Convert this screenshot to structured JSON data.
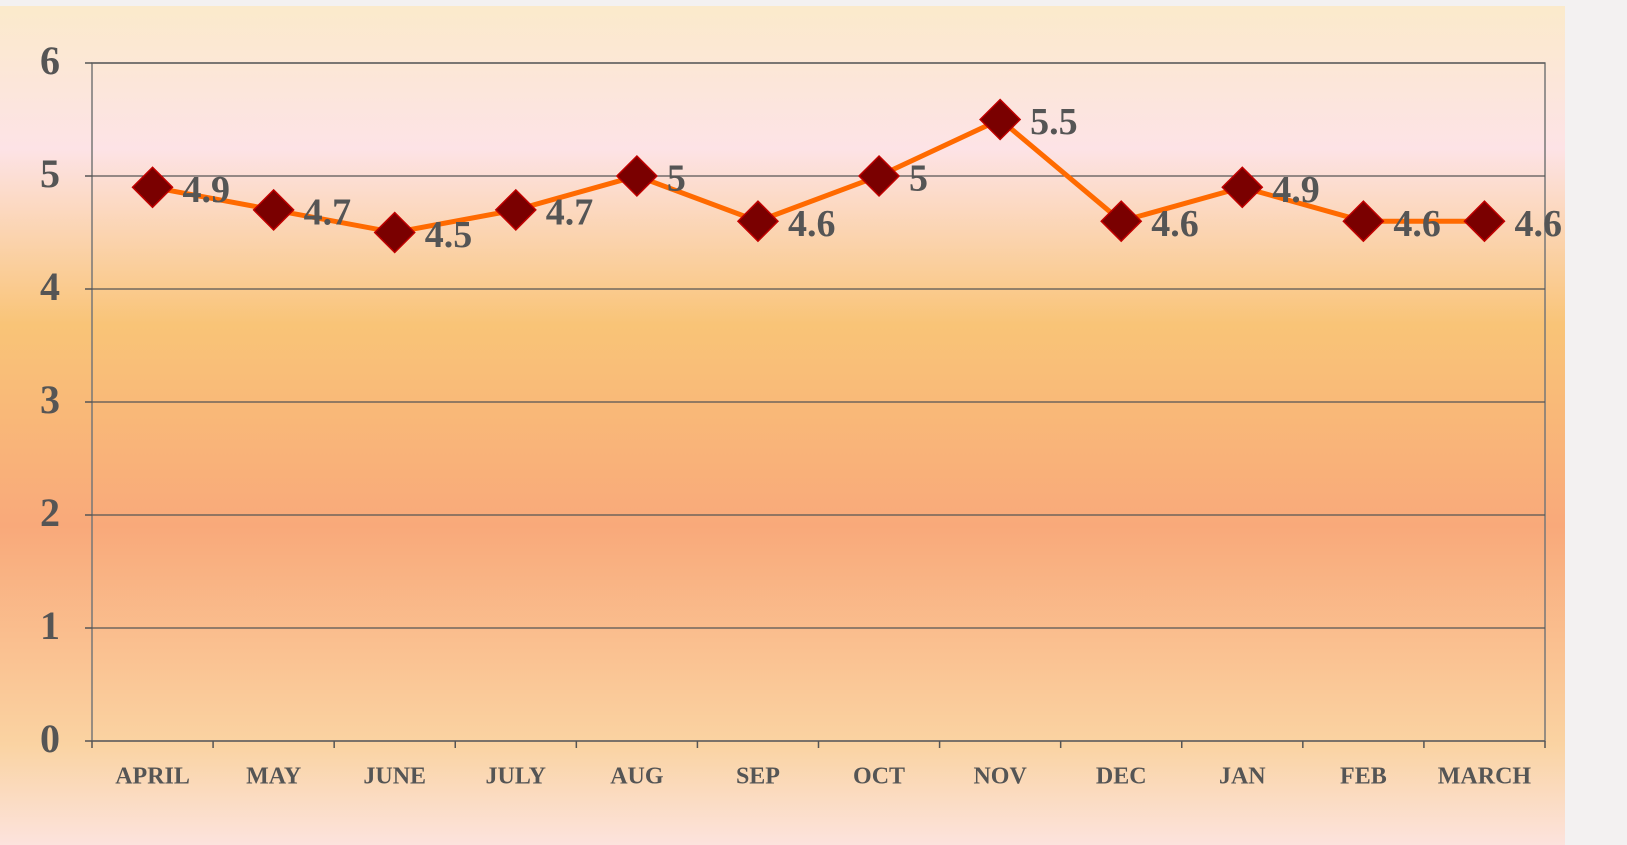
{
  "chart_data": {
    "type": "line",
    "categories": [
      "APRIL",
      "MAY",
      "JUNE",
      "JULY",
      "AUG",
      "SEP",
      "OCT",
      "NOV",
      "DEC",
      "JAN",
      "FEB",
      "MARCH"
    ],
    "values": [
      4.9,
      4.7,
      4.5,
      4.7,
      5,
      4.6,
      5,
      5.5,
      4.6,
      4.9,
      4.6,
      4.6
    ],
    "color": "#ff6a00",
    "marker_color": "#7a0000",
    "ylim": [
      0,
      6
    ],
    "yticks": [
      0,
      1,
      2,
      3,
      4,
      5,
      6
    ],
    "grid": true
  }
}
